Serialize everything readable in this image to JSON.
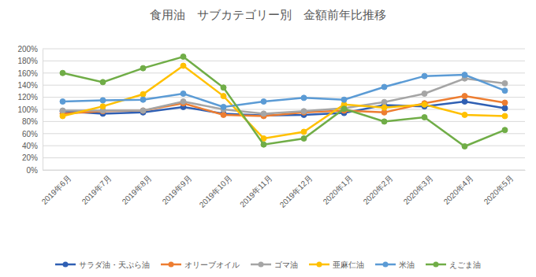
{
  "chart_data": {
    "type": "line",
    "title": "食用油　サブカテゴリー別　金額前年比推移",
    "categories": [
      "2019年6月",
      "2019年7月",
      "2019年8月",
      "2019年9月",
      "2019年10月",
      "2019年11月",
      "2019年12月",
      "2020年1月",
      "2020年2月",
      "2020年3月",
      "2020年4月",
      "2020年5月"
    ],
    "series": [
      {
        "name": "サラダ油・天ぷら油",
        "color": "#2f5fb3",
        "values": [
          97,
          93,
          95,
          104,
          93,
          90,
          91,
          94,
          107,
          105,
          113,
          102
        ]
      },
      {
        "name": "オリーブオイル",
        "color": "#ed7d31",
        "values": [
          93,
          97,
          98,
          110,
          91,
          89,
          95,
          98,
          95,
          110,
          122,
          111
        ]
      },
      {
        "name": "ゴマ油",
        "color": "#a5a5a5",
        "values": [
          98,
          98,
          98,
          113,
          100,
          93,
          97,
          102,
          112,
          126,
          151,
          143
        ]
      },
      {
        "name": "亜麻仁油",
        "color": "#ffc000",
        "values": [
          89,
          105,
          125,
          172,
          122,
          52,
          63,
          108,
          103,
          108,
          91,
          89
        ]
      },
      {
        "name": "米油",
        "color": "#5b9bd5",
        "values": [
          113,
          115,
          116,
          126,
          104,
          113,
          119,
          116,
          137,
          155,
          157,
          131
        ]
      },
      {
        "name": "えごま油",
        "color": "#70ad47",
        "values": [
          160,
          145,
          168,
          187,
          136,
          42,
          52,
          101,
          80,
          87,
          39,
          66
        ]
      }
    ],
    "ylim": [
      0,
      200
    ],
    "yticks": [
      {
        "value": 0,
        "label": "0%"
      },
      {
        "value": 20,
        "label": "20%"
      },
      {
        "value": 40,
        "label": "40%"
      },
      {
        "value": 60,
        "label": "60%"
      },
      {
        "value": 80,
        "label": "80%"
      },
      {
        "value": 100,
        "label": "100%"
      },
      {
        "value": 120,
        "label": "120%"
      },
      {
        "value": 140,
        "label": "140%"
      },
      {
        "value": 160,
        "label": "160%"
      },
      {
        "value": 180,
        "label": "180%"
      },
      {
        "value": 200,
        "label": "200%"
      }
    ],
    "grid": true,
    "legend": "bottom",
    "marker": "circle",
    "line_style": "solid"
  }
}
